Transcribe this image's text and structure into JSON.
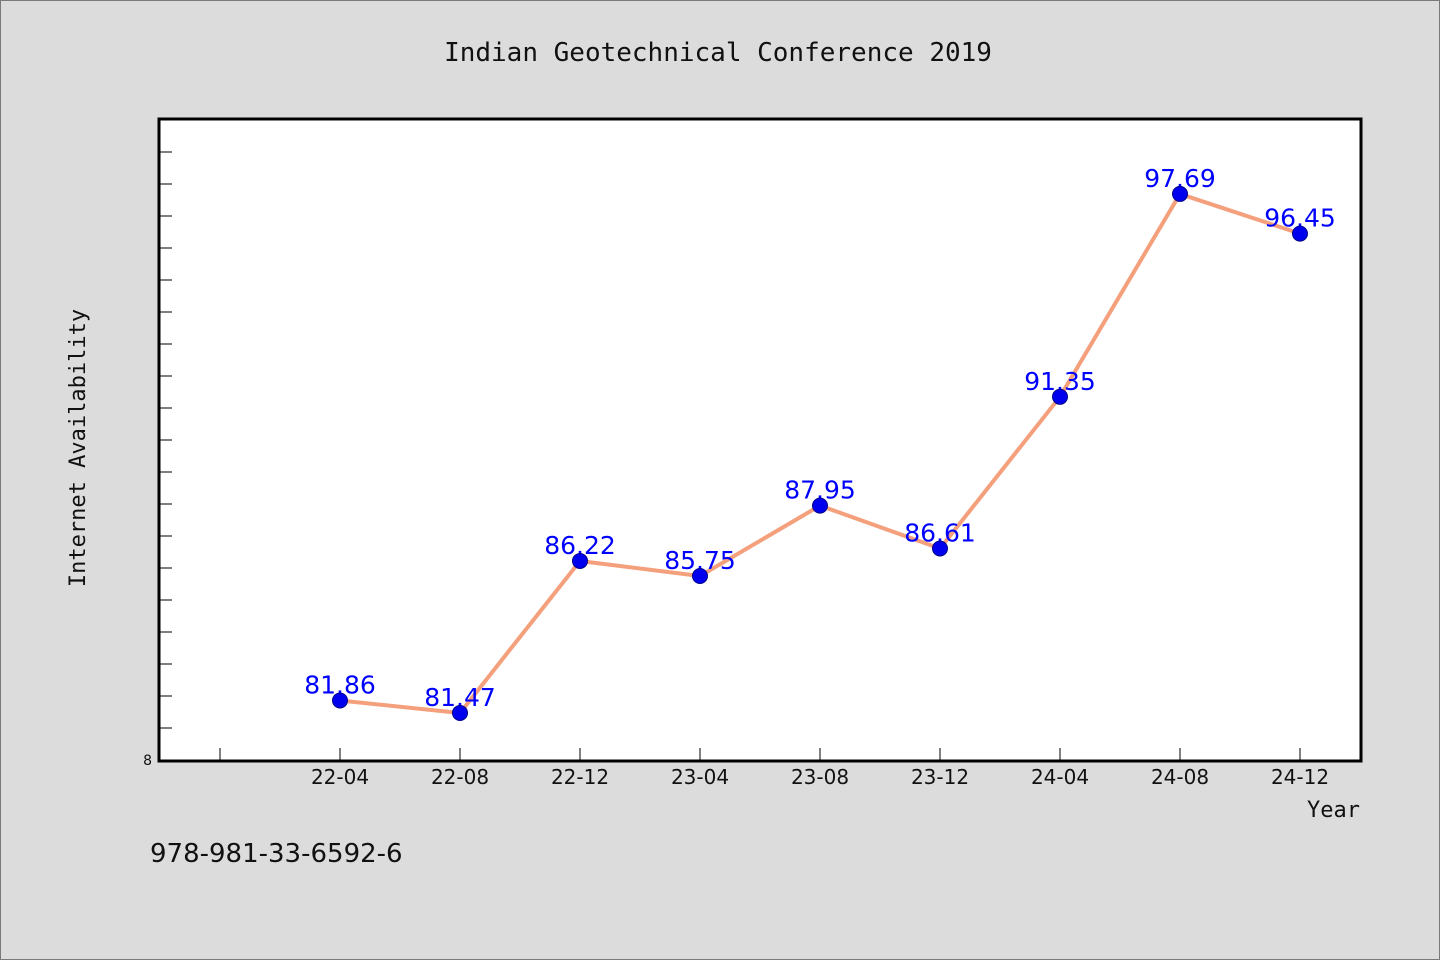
{
  "chart_data": {
    "type": "line",
    "title": "Indian Geotechnical Conference 2019",
    "xlabel": "Year",
    "ylabel": "Internet Availability",
    "categories": [
      "22-04",
      "22-08",
      "22-12",
      "23-04",
      "23-08",
      "23-12",
      "24-04",
      "24-08",
      "24-12"
    ],
    "values": [
      81.86,
      81.47,
      86.22,
      85.75,
      87.95,
      86.61,
      91.35,
      97.69,
      96.45
    ],
    "value_labels": [
      "81.86",
      "81.47",
      "86.22",
      "85.75",
      "87.95",
      "86.61",
      "91.35",
      "97.69",
      "96.45"
    ],
    "y_min_label": "8",
    "ylim": [
      80,
      100
    ],
    "grid": false,
    "colors": {
      "line": "#f4a07c",
      "marker": "#0000ee",
      "labels": "#0000ff",
      "background": "#dcdcdc",
      "plot_bg": "#ffffff"
    }
  },
  "footer": {
    "isbn": "978-981-33-6592-6"
  }
}
